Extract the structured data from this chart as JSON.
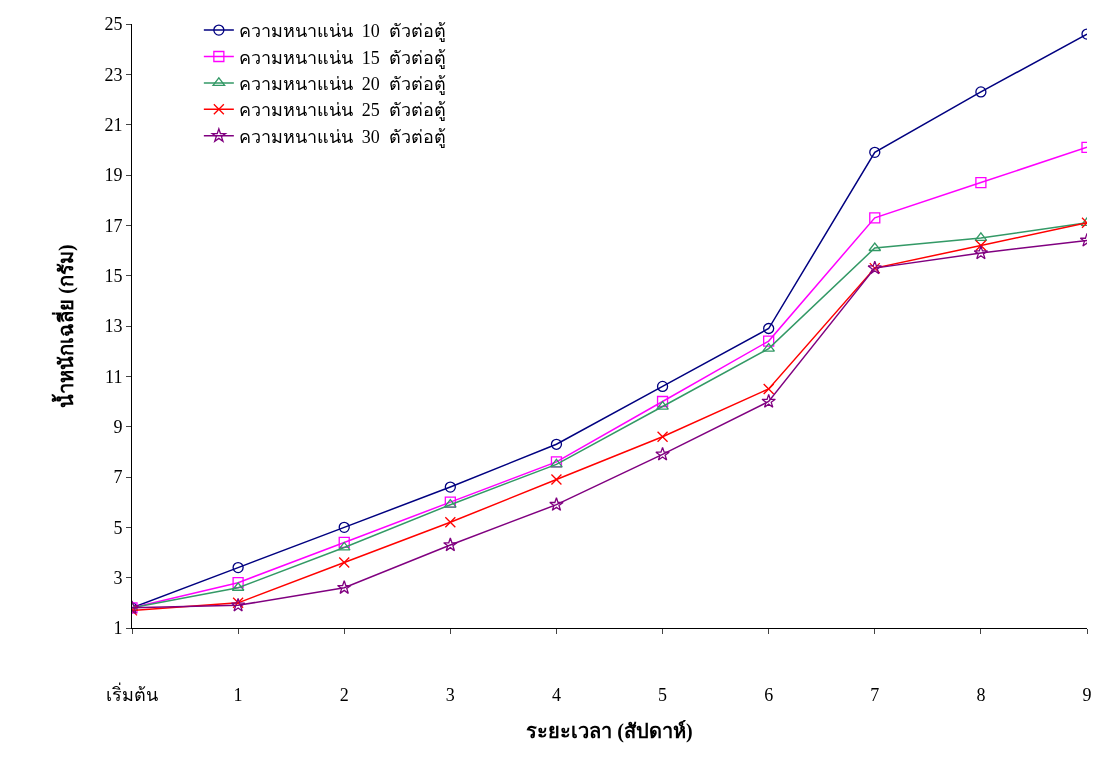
{
  "chart_data": {
    "type": "line",
    "xlabel": "ระยะเวลา (สัปดาห์)",
    "ylabel": "น้ำหนักเฉลี่ย (กรัม)",
    "categories": [
      "เริ่มต้น",
      "1",
      "2",
      "3",
      "4",
      "5",
      "6",
      "7",
      "8",
      "9"
    ],
    "ylim": [
      1,
      25
    ],
    "yticks": [
      1,
      3,
      5,
      7,
      9,
      11,
      13,
      15,
      17,
      19,
      21,
      23,
      25
    ],
    "grid": false,
    "legend": "top left",
    "line_style": "solid",
    "series": [
      {
        "name": "ความหนาแน่น  10  ตัวต่อตู้",
        "color": "#000080",
        "marker": "circle",
        "values": [
          1.8,
          3.4,
          5.0,
          6.6,
          8.3,
          10.6,
          12.9,
          19.9,
          22.3,
          24.6
        ]
      },
      {
        "name": "ความหนาแน่น  15  ตัวต่อตู้",
        "color": "#ff00ff",
        "marker": "square",
        "values": [
          1.8,
          2.8,
          4.4,
          6.0,
          7.6,
          10.0,
          12.4,
          17.3,
          18.7,
          20.1
        ]
      },
      {
        "name": "ความหนาแน่น  20  ตัวต่อตู้",
        "color": "#339966",
        "marker": "triangle",
        "values": [
          1.8,
          2.6,
          4.2,
          5.9,
          7.5,
          9.8,
          12.1,
          16.1,
          16.5,
          17.1
        ]
      },
      {
        "name": "ความหนาแน่น  25  ตัวต่อตู้",
        "color": "#ff0000",
        "marker": "cross",
        "values": [
          1.7,
          2.0,
          3.6,
          5.2,
          6.9,
          8.6,
          10.5,
          15.3,
          16.2,
          17.1
        ]
      },
      {
        "name": "ความหนาแน่น  30  ตัวต่อตู้",
        "color": "#800080",
        "marker": "star",
        "values": [
          1.8,
          1.9,
          2.6,
          4.3,
          5.9,
          7.9,
          10.0,
          15.3,
          15.9,
          16.4
        ]
      }
    ]
  }
}
